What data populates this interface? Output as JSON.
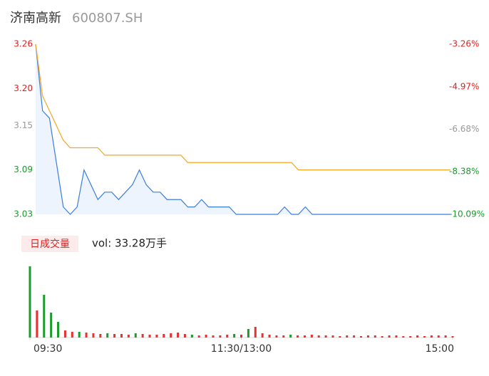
{
  "chart_data": {
    "type": "intraday",
    "title": "济南高新",
    "subtitle": "600807.SH",
    "volume_label": "日成交量",
    "volume_text": "vol: 33.28万手",
    "x": [
      0,
      4,
      8,
      12,
      16,
      20,
      24,
      28,
      32,
      36,
      40,
      44,
      48,
      52,
      56,
      60,
      64,
      68,
      72,
      76,
      80,
      84,
      88,
      92,
      96,
      100,
      104,
      108,
      112,
      116,
      120,
      124,
      128,
      132,
      136,
      140,
      144,
      148,
      152,
      156,
      160,
      164,
      168,
      172,
      176,
      180,
      184,
      188,
      192,
      196,
      200,
      204,
      208,
      212,
      216,
      220,
      224,
      228,
      232,
      236,
      240
    ],
    "xlim": [
      0,
      240
    ],
    "xticks": [
      {
        "value": 0,
        "label": "09:30"
      },
      {
        "value": 120,
        "label": "11:30/13:00"
      },
      {
        "value": 240,
        "label": "15:00"
      }
    ],
    "series": [
      {
        "color": "#3b7ddd",
        "values": [
          3.26,
          3.17,
          3.16,
          3.1,
          3.04,
          3.03,
          3.04,
          3.09,
          3.07,
          3.05,
          3.06,
          3.06,
          3.05,
          3.06,
          3.07,
          3.09,
          3.07,
          3.06,
          3.06,
          3.05,
          3.05,
          3.05,
          3.04,
          3.04,
          3.05,
          3.04,
          3.04,
          3.04,
          3.04,
          3.03,
          3.03,
          3.03,
          3.03,
          3.03,
          3.03,
          3.03,
          3.04,
          3.03,
          3.03,
          3.04,
          3.03,
          3.03,
          3.03,
          3.03,
          3.03,
          3.03,
          3.03,
          3.03,
          3.03,
          3.03,
          3.03,
          3.03,
          3.03,
          3.03,
          3.03,
          3.03,
          3.03,
          3.03,
          3.03,
          3.03,
          3.03
        ]
      },
      {
        "color": "#f5a623",
        "values": [
          3.26,
          3.19,
          3.17,
          3.15,
          3.13,
          3.12,
          3.12,
          3.12,
          3.12,
          3.12,
          3.11,
          3.11,
          3.11,
          3.11,
          3.11,
          3.11,
          3.11,
          3.11,
          3.11,
          3.11,
          3.11,
          3.11,
          3.1,
          3.1,
          3.1,
          3.1,
          3.1,
          3.1,
          3.1,
          3.1,
          3.1,
          3.1,
          3.1,
          3.1,
          3.1,
          3.1,
          3.1,
          3.1,
          3.09,
          3.09,
          3.09,
          3.09,
          3.09,
          3.09,
          3.09,
          3.09,
          3.09,
          3.09,
          3.09,
          3.09,
          3.09,
          3.09,
          3.09,
          3.09,
          3.09,
          3.09,
          3.09,
          3.09,
          3.09,
          3.09,
          3.09
        ]
      }
    ],
    "ylim": [
      3.03,
      3.26
    ],
    "yticks": [
      3.26,
      {
        "value": 3.2,
        "label": "3.20"
      },
      3.15,
      3.09,
      3.03
    ],
    "ytick_colors": [
      "#e02020",
      "#e02020",
      "#999999",
      "#1a9b2c",
      "#1a9b2c"
    ],
    "y2lim": [
      -10.09,
      -3.26
    ],
    "y2ticks": [
      {
        "value": -3.26,
        "label": "-3.26%"
      },
      {
        "value": -4.97,
        "label": "-4.97%"
      },
      {
        "value": -6.68,
        "label": "-6.68%"
      },
      {
        "value": -8.38,
        "label": "-8.38%"
      },
      {
        "value": -10.09,
        "label": "-10.09%"
      }
    ],
    "volume": [
      100,
      38,
      60,
      35,
      22,
      10,
      8,
      8,
      7,
      6,
      5,
      6,
      5,
      5,
      4,
      6,
      5,
      4,
      4,
      5,
      6,
      7,
      5,
      4,
      3,
      4,
      3,
      3,
      4,
      5,
      4,
      12,
      15,
      6,
      4,
      3,
      3,
      4,
      3,
      3,
      4,
      3,
      3,
      3,
      2,
      3,
      3,
      2,
      3,
      3,
      2,
      3,
      3,
      2,
      2,
      3,
      2,
      3,
      3,
      3,
      2
    ],
    "volume_colors": [
      "#1a9b2c",
      "#e83030",
      "#1a9b2c",
      "#1a9b2c",
      "#1a9b2c",
      "#e83030",
      "#e83030",
      "#1a9b2c",
      "#e83030",
      "#e83030",
      "#e83030",
      "#1a9b2c",
      "#e83030",
      "#e83030",
      "#e83030",
      "#1a9b2c",
      "#e83030",
      "#e83030",
      "#e83030",
      "#e83030",
      "#e83030",
      "#e83030",
      "#e83030",
      "#1a9b2c",
      "#e83030",
      "#e83030",
      "#e83030",
      "#e83030",
      "#e83030",
      "#1a9b2c",
      "#e83030",
      "#1a9b2c",
      "#e83030",
      "#e83030",
      "#e83030",
      "#e83030",
      "#e83030",
      "#1a9b2c",
      "#e83030",
      "#e83030",
      "#e83030",
      "#e83030",
      "#e83030",
      "#e83030",
      "#e83030",
      "#e83030",
      "#e83030",
      "#e83030",
      "#e83030",
      "#e83030",
      "#e83030",
      "#e83030",
      "#e83030",
      "#e83030",
      "#e83030",
      "#e83030",
      "#e83030",
      "#e83030",
      "#e83030",
      "#e83030",
      "#e83030"
    ],
    "volume_ylim": [
      0,
      100
    ]
  }
}
